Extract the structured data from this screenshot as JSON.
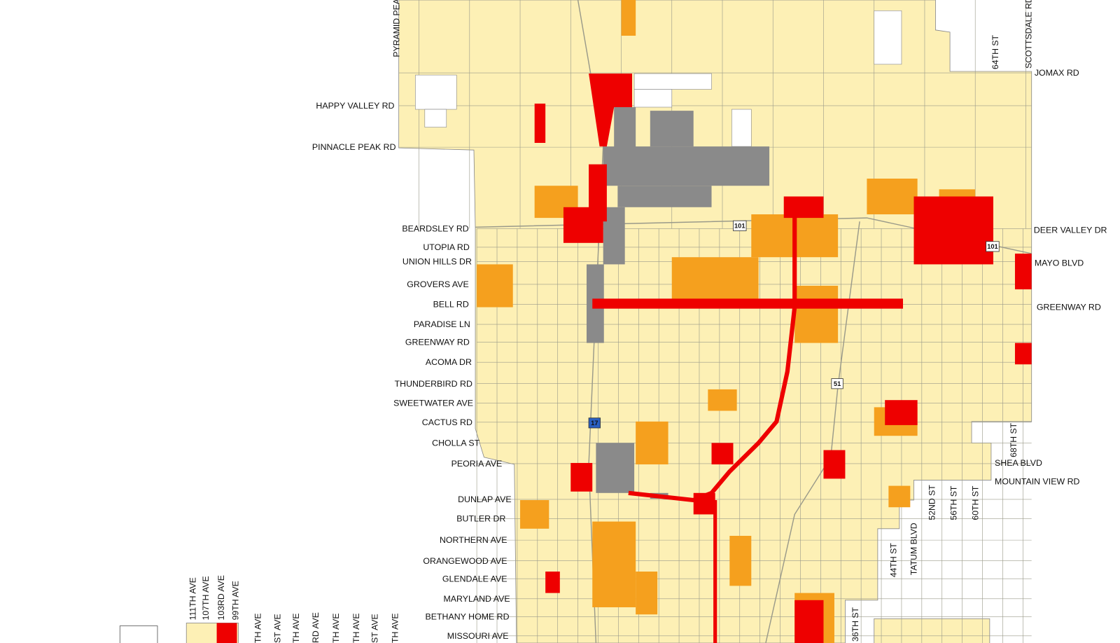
{
  "map": {
    "left_labels": [
      "HAPPY VALLEY RD",
      "PINNACLE PEAK RD",
      "BEARDSLEY RD",
      "UTOPIA RD",
      "UNION HILLS DR",
      "GROVERS AVE",
      "BELL RD",
      "PARADISE LN",
      "GREENWAY RD",
      "ACOMA DR",
      "THUNDERBIRD RD",
      "SWEETWATER AVE",
      "CACTUS RD",
      "CHOLLA ST",
      "PEORIA AVE",
      "DUNLAP AVE",
      "BUTLER DR",
      "NORTHERN AVE",
      "ORANGEWOOD AVE",
      "GLENDALE AVE",
      "MARYLAND AVE",
      "BETHANY HOME RD",
      "MISSOURI AVE"
    ],
    "right_labels": [
      "JOMAX RD",
      "DEER VALLEY DR",
      "MAYO BLVD",
      "GREENWAY RD",
      "SHEA BLVD",
      "MOUNTAIN VIEW RD"
    ],
    "vertical_labels": [
      "PYRAMID PEA",
      "SCOTTSDALE RD",
      "64TH ST",
      "68TH ST",
      "52ND ST",
      "56TH ST",
      "60TH ST",
      "44TH ST",
      "TATUM BLVD",
      "36TH ST",
      "111TH AVE",
      "107TH AVE",
      "103RD AVE",
      "99TH AVE",
      "TH AVE",
      "ST AVE",
      "TH AVE",
      "RD AVE",
      "TH AVE",
      "TH AVE",
      "ST AVE",
      "TH AVE"
    ],
    "highway_shields": [
      "101",
      "101",
      "51",
      "17"
    ]
  }
}
